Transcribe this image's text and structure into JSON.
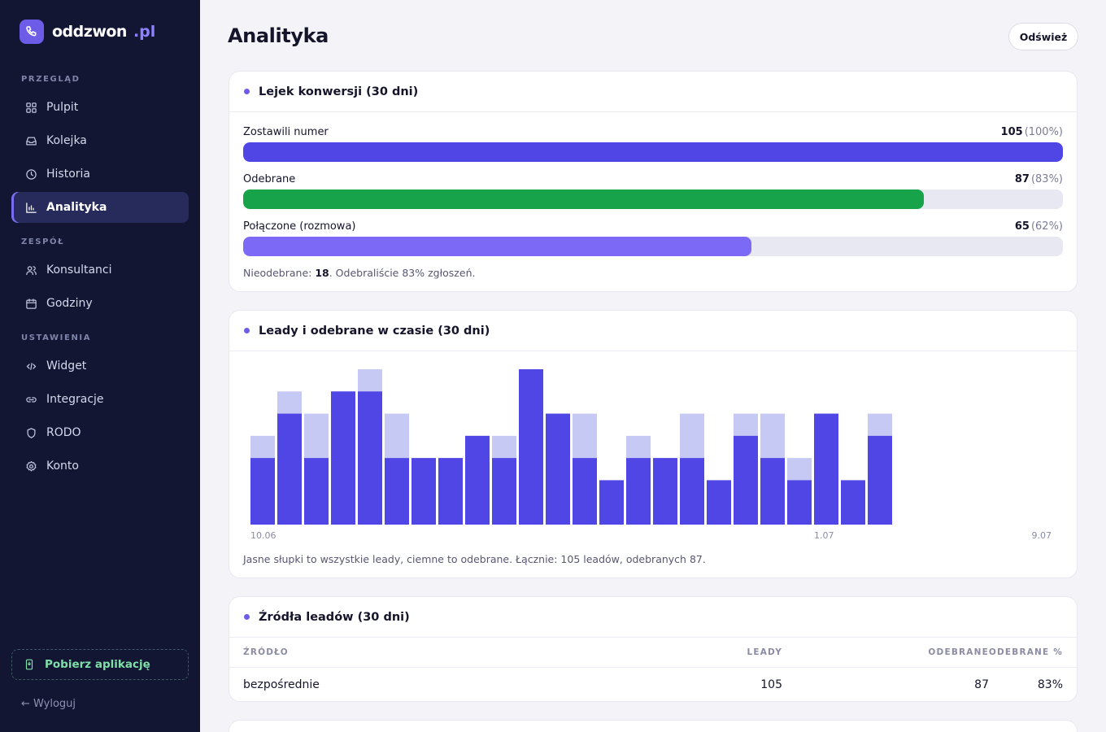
{
  "brand": {
    "name": "oddzwon",
    "tld": ".pl"
  },
  "sidebar": {
    "sections": [
      {
        "label": "PRZEGLĄD"
      },
      {
        "label": "ZESPÓŁ"
      },
      {
        "label": "USTAWIENIA"
      }
    ],
    "items": [
      {
        "label": "Pulpit",
        "icon": "grid-icon"
      },
      {
        "label": "Kolejka",
        "icon": "inbox-icon"
      },
      {
        "label": "Historia",
        "icon": "clock-icon"
      },
      {
        "label": "Analityka",
        "icon": "bar-chart-icon",
        "active": true
      },
      {
        "label": "Konsultanci",
        "icon": "users-icon"
      },
      {
        "label": "Godziny",
        "icon": "calendar-icon"
      },
      {
        "label": "Widget",
        "icon": "code-icon"
      },
      {
        "label": "Integracje",
        "icon": "link-icon"
      },
      {
        "label": "RODO",
        "icon": "shield-icon"
      },
      {
        "label": "Konto",
        "icon": "gear-icon"
      }
    ],
    "download_label": "Pobierz aplikację",
    "logout_label": "← Wyloguj"
  },
  "header": {
    "title": "Analityka",
    "refresh_label": "Odśwież"
  },
  "funnel": {
    "title": "Lejek konwersji (30 dni)",
    "rows": [
      {
        "label": "Zostawili numer",
        "count": "105",
        "pct": "(100%)",
        "fraction": 1.0,
        "color": "#4f46e5"
      },
      {
        "label": "Odebrane",
        "count": "87",
        "pct": "(83%)",
        "fraction": 0.83,
        "color": "#16a34a"
      },
      {
        "label": "Połączone (rozmowa)",
        "count": "65",
        "pct": "(62%)",
        "fraction": 0.62,
        "color": "#7c6af7"
      }
    ],
    "note_prefix": "Nieodebrane: ",
    "note_value": "18",
    "note_suffix": ". Odebraliście 83% zgłoszeń."
  },
  "timeline": {
    "title": "Leady i odebrane w czasie (30 dni)",
    "note": "Jasne słupki to wszystkie leady, ciemne to odebrane. Łącznie: 105 leadów, odebranych 87."
  },
  "chart_data": {
    "type": "bar",
    "categories": [
      "10.06",
      "11.06",
      "12.06",
      "13.06",
      "14.06",
      "15.06",
      "16.06",
      "17.06",
      "18.06",
      "19.06",
      "20.06",
      "21.06",
      "22.06",
      "23.06",
      "24.06",
      "25.06",
      "26.06",
      "27.06",
      "28.06",
      "29.06",
      "30.06",
      "1.07",
      "2.07",
      "3.07",
      "4.07",
      "5.07",
      "6.07",
      "7.07",
      "8.07",
      "9.07"
    ],
    "tick_labels": [
      {
        "index": 0,
        "label": "10.06"
      },
      {
        "index": 21,
        "label": "1.07"
      },
      {
        "index": 29,
        "label": "9.07"
      }
    ],
    "series": [
      {
        "values": [
          4,
          6,
          5,
          6,
          7,
          5,
          3,
          3,
          4,
          4,
          7,
          5,
          5,
          2,
          4,
          3,
          5,
          2,
          5,
          5,
          3,
          5,
          2,
          5,
          0,
          0,
          0,
          0,
          0,
          0
        ],
        "color": "#c7c9f5"
      },
      {
        "values": [
          3,
          5,
          3,
          6,
          6,
          3,
          3,
          3,
          4,
          3,
          7,
          5,
          3,
          2,
          3,
          3,
          3,
          2,
          4,
          3,
          2,
          5,
          2,
          4,
          0,
          0,
          0,
          0,
          0,
          0
        ],
        "color": "#4f46e5"
      }
    ],
    "ylim": [
      0,
      7
    ],
    "grid": false,
    "legend": "none"
  },
  "sources": {
    "title": "Źródła leadów (30 dni)",
    "columns": [
      "ŹRÓDŁO",
      "LEADY",
      "ODEBRANE",
      "ODEBRANE %"
    ],
    "rows": [
      {
        "source": "bezpośrednie",
        "leads": "105",
        "answered": "87",
        "pct": "83%"
      }
    ]
  }
}
